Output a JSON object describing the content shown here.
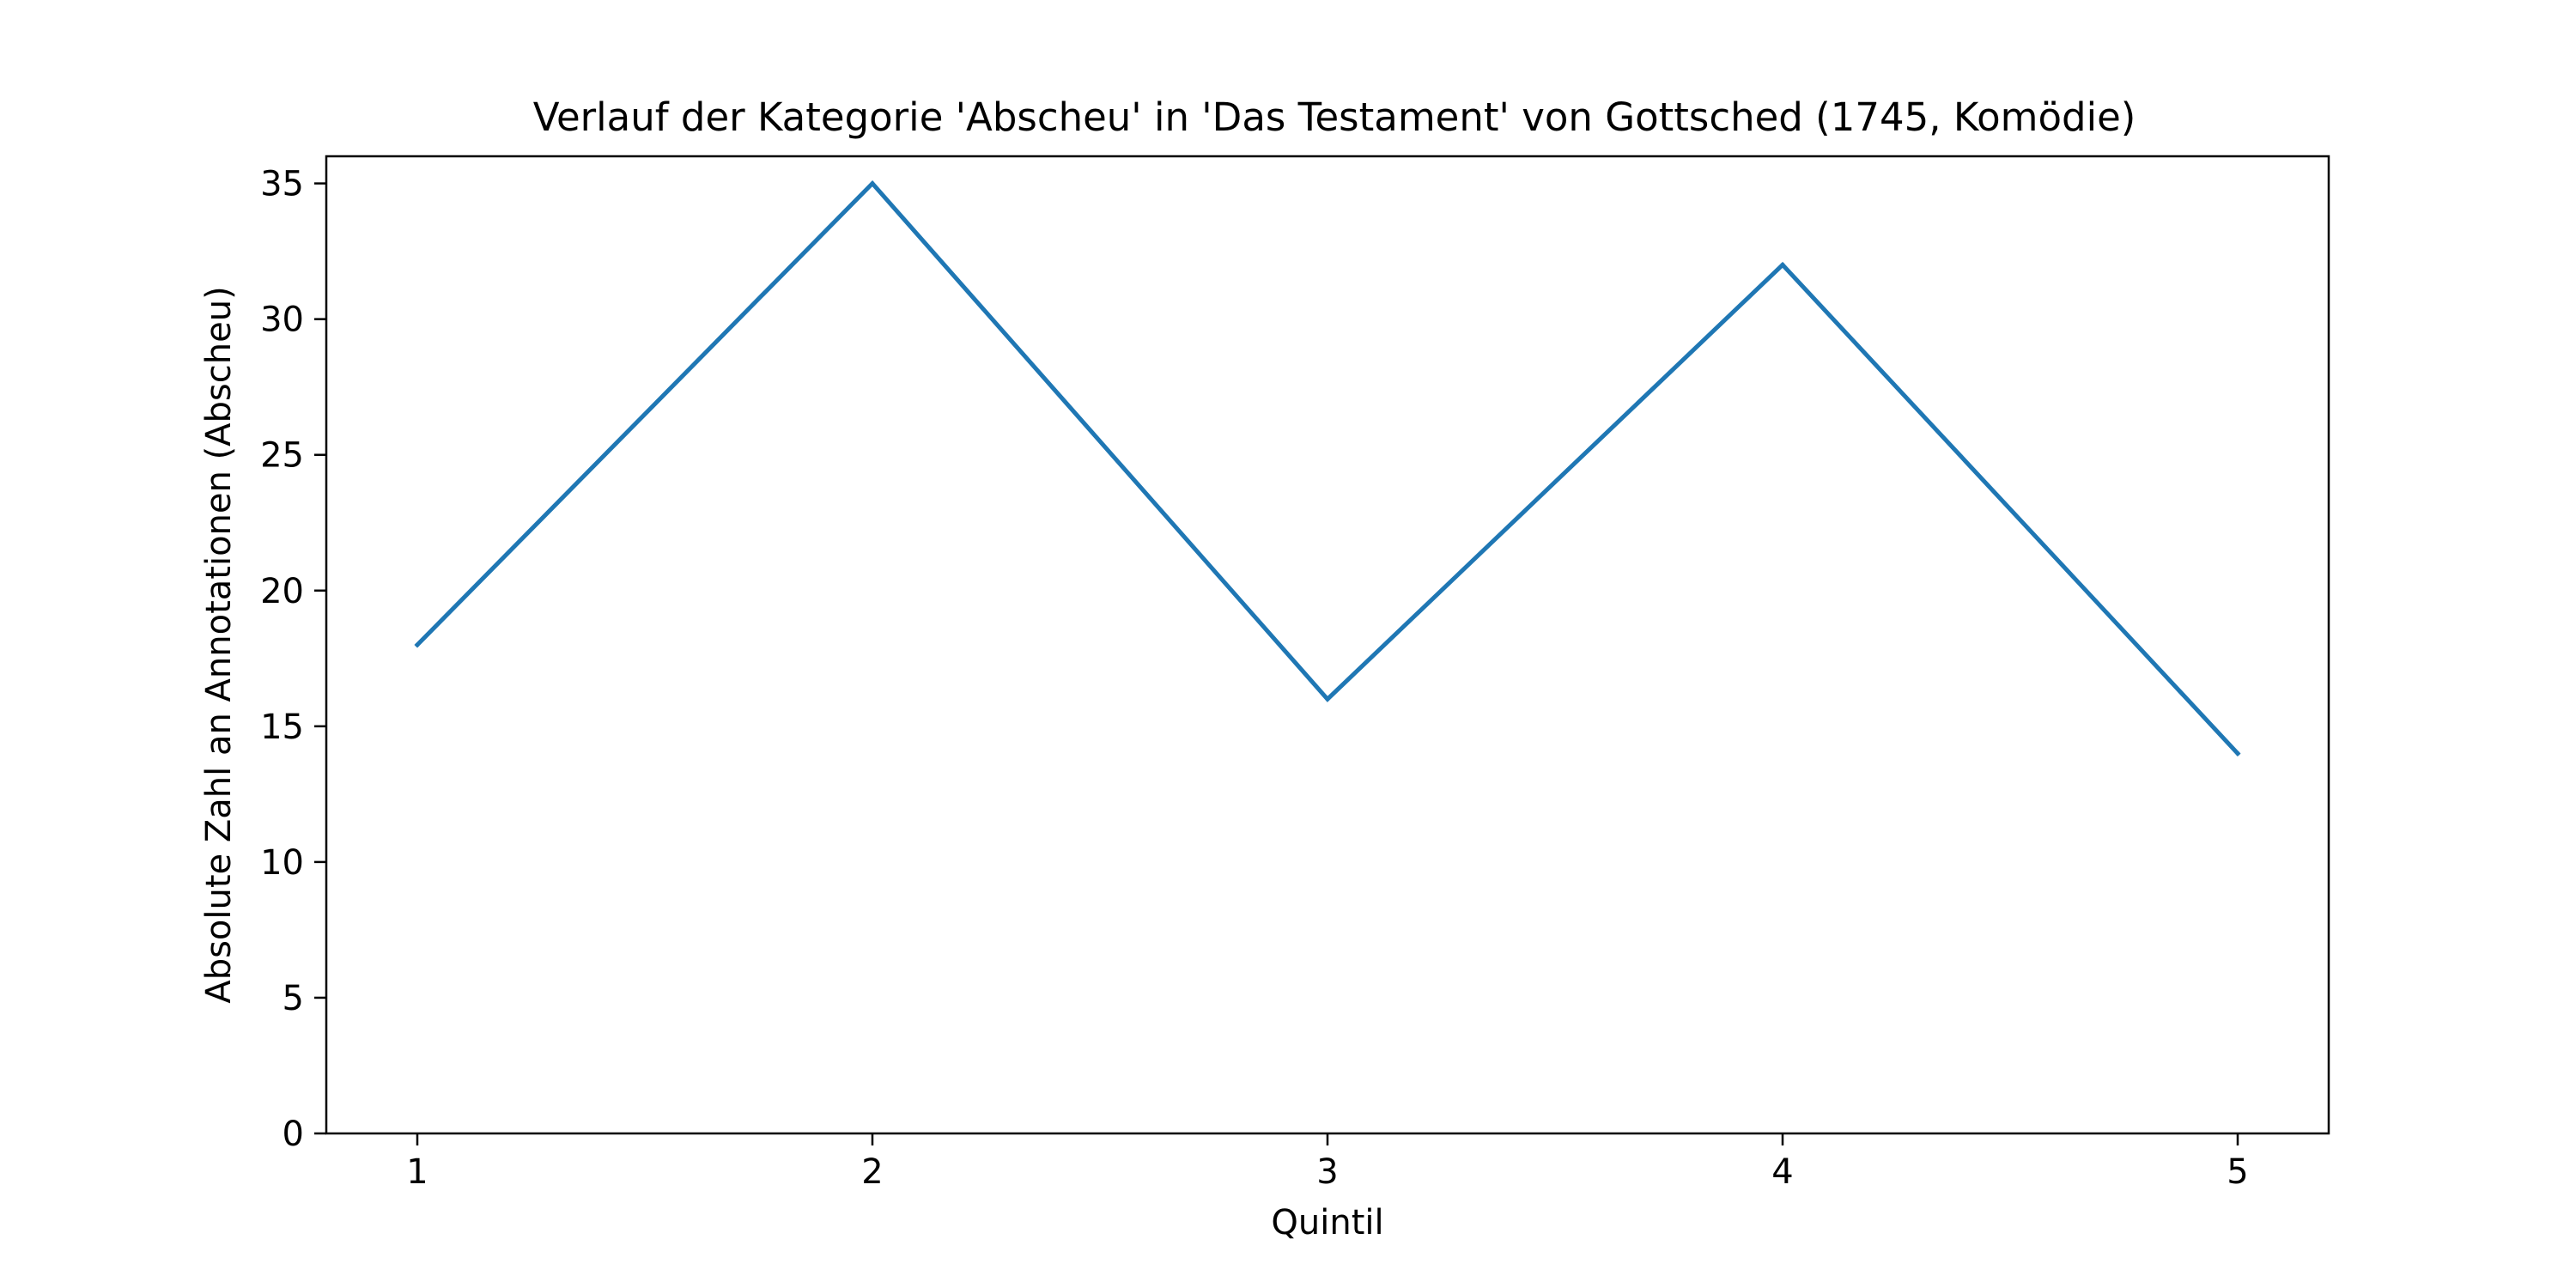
{
  "chart_data": {
    "type": "line",
    "title": "Verlauf der Kategorie 'Abscheu' in 'Das Testament' von Gottsched (1745, Komödie)",
    "xlabel": "Quintil",
    "ylabel": "Absolute Zahl an Annotationen (Abscheu)",
    "x": [
      1,
      2,
      3,
      4,
      5
    ],
    "x_tick_labels": [
      "1",
      "2",
      "3",
      "4",
      "5"
    ],
    "xlim": [
      0.8,
      5.2
    ],
    "ylim": [
      0,
      36
    ],
    "y_ticks": [
      0,
      5,
      10,
      15,
      20,
      25,
      30,
      35
    ],
    "y_tick_labels": [
      "0",
      "5",
      "10",
      "15",
      "20",
      "25",
      "30",
      "35"
    ],
    "series": [
      {
        "values": [
          18,
          35,
          16,
          32,
          14
        ],
        "color": "#1f77b4"
      }
    ],
    "grid": false,
    "legend": false
  }
}
